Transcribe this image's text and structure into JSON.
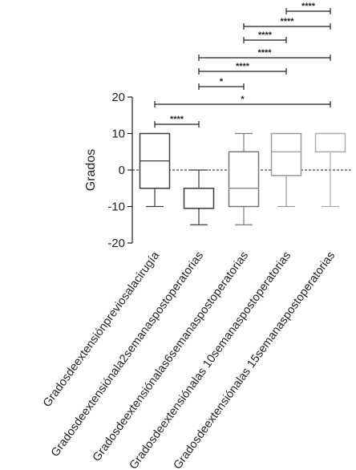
{
  "chart_data": {
    "type": "box",
    "ylabel": "Grados",
    "xlabel": "",
    "ylim": [
      -20,
      22
    ],
    "yticks": [
      20,
      10,
      0,
      -10,
      -20
    ],
    "zero_reference_line": "dashed",
    "categories": [
      "Gradosdeextensiónpreviosalacirugía",
      "Gradosdeextensiónala2semanaspostoperatorias",
      "Gradosdeextensiónalas6semanaspostoperatorias",
      "Gradosdeextensiónalas 10semanaspostoperatorias",
      "Gradosdeextensiónalas 15semanaspostoperatorias"
    ],
    "boxes": [
      {
        "min": -10,
        "q1": -5,
        "median": 2.5,
        "q3": 10,
        "max": 10,
        "color": "#3d3d3d"
      },
      {
        "min": -15,
        "q1": -10.5,
        "median": -10.5,
        "q3": -5,
        "max": 0,
        "color": "#3d3d3d"
      },
      {
        "min": -15,
        "q1": -10,
        "median": -5,
        "q3": 5,
        "max": 10,
        "color": "#7a7a7a"
      },
      {
        "min": -10,
        "q1": -1.5,
        "median": 5,
        "q3": 10,
        "max": 10,
        "color": "#9a9a9a"
      },
      {
        "min": -10,
        "q1": 5,
        "median": 5,
        "q3": 10,
        "max": 10,
        "color": "#ababab"
      }
    ],
    "comparisons": [
      {
        "from": 0,
        "to": 1,
        "label": "****",
        "level": 0
      },
      {
        "from": 0,
        "to": 4,
        "label": "*",
        "level": 1
      },
      {
        "from": 1,
        "to": 2,
        "label": "*",
        "level": 2
      },
      {
        "from": 1,
        "to": 3,
        "label": "****",
        "level": 3
      },
      {
        "from": 1,
        "to": 4,
        "label": "****",
        "level": 4
      },
      {
        "from": 2,
        "to": 3,
        "label": "****",
        "level": 5
      },
      {
        "from": 2,
        "to": 4,
        "label": "****",
        "level": 6
      },
      {
        "from": 3,
        "to": 4,
        "label": "****",
        "level": 7
      }
    ]
  }
}
